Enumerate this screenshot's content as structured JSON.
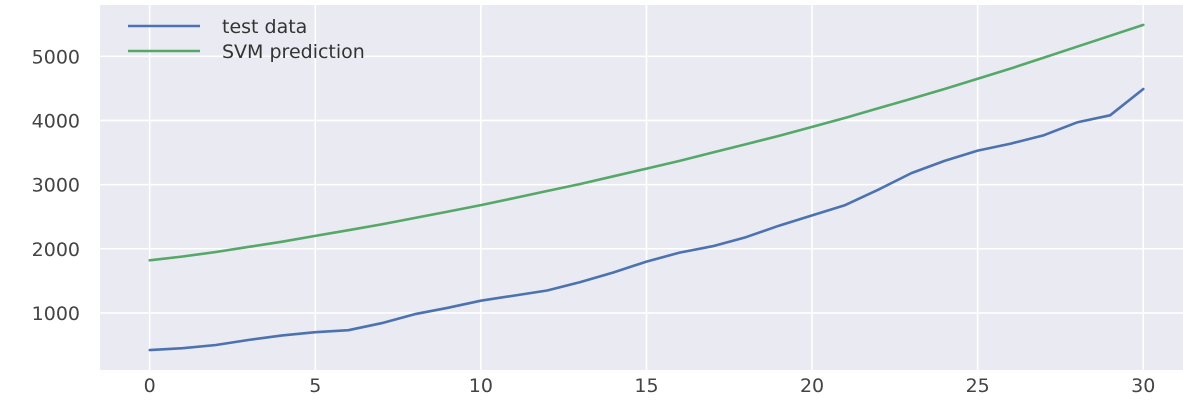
{
  "chart_data": {
    "type": "line",
    "title": "",
    "xlabel": "",
    "ylabel": "",
    "xlim": [
      -1.5,
      31.2
    ],
    "ylim": [
      110,
      5800
    ],
    "xticks": [
      0,
      5,
      10,
      15,
      20,
      25,
      30
    ],
    "yticks": [
      1000,
      2000,
      3000,
      4000,
      5000
    ],
    "grid": true,
    "legend_position": "upper-left",
    "background": "#eaeaf2",
    "x": [
      0,
      1,
      2,
      3,
      4,
      5,
      6,
      7,
      8,
      9,
      10,
      11,
      12,
      13,
      14,
      15,
      16,
      17,
      18,
      19,
      20,
      21,
      22,
      23,
      24,
      25,
      26,
      27,
      28,
      29,
      30
    ],
    "series": [
      {
        "name": "test data",
        "color": "#4c72b0",
        "values": [
          420,
          450,
          500,
          580,
          650,
          700,
          730,
          840,
          980,
          1080,
          1190,
          1270,
          1350,
          1480,
          1630,
          1800,
          1940,
          2040,
          2180,
          2360,
          2520,
          2680,
          2920,
          3180,
          3370,
          3530,
          3640,
          3770,
          3970,
          4080,
          4490
        ]
      },
      {
        "name": "SVM prediction",
        "color": "#55a868",
        "values": [
          1820,
          1880,
          1950,
          2030,
          2110,
          2200,
          2290,
          2380,
          2480,
          2580,
          2680,
          2790,
          2900,
          3010,
          3130,
          3250,
          3370,
          3500,
          3630,
          3760,
          3900,
          4040,
          4190,
          4340,
          4490,
          4650,
          4810,
          4980,
          5150,
          5320,
          5490
        ]
      }
    ]
  }
}
